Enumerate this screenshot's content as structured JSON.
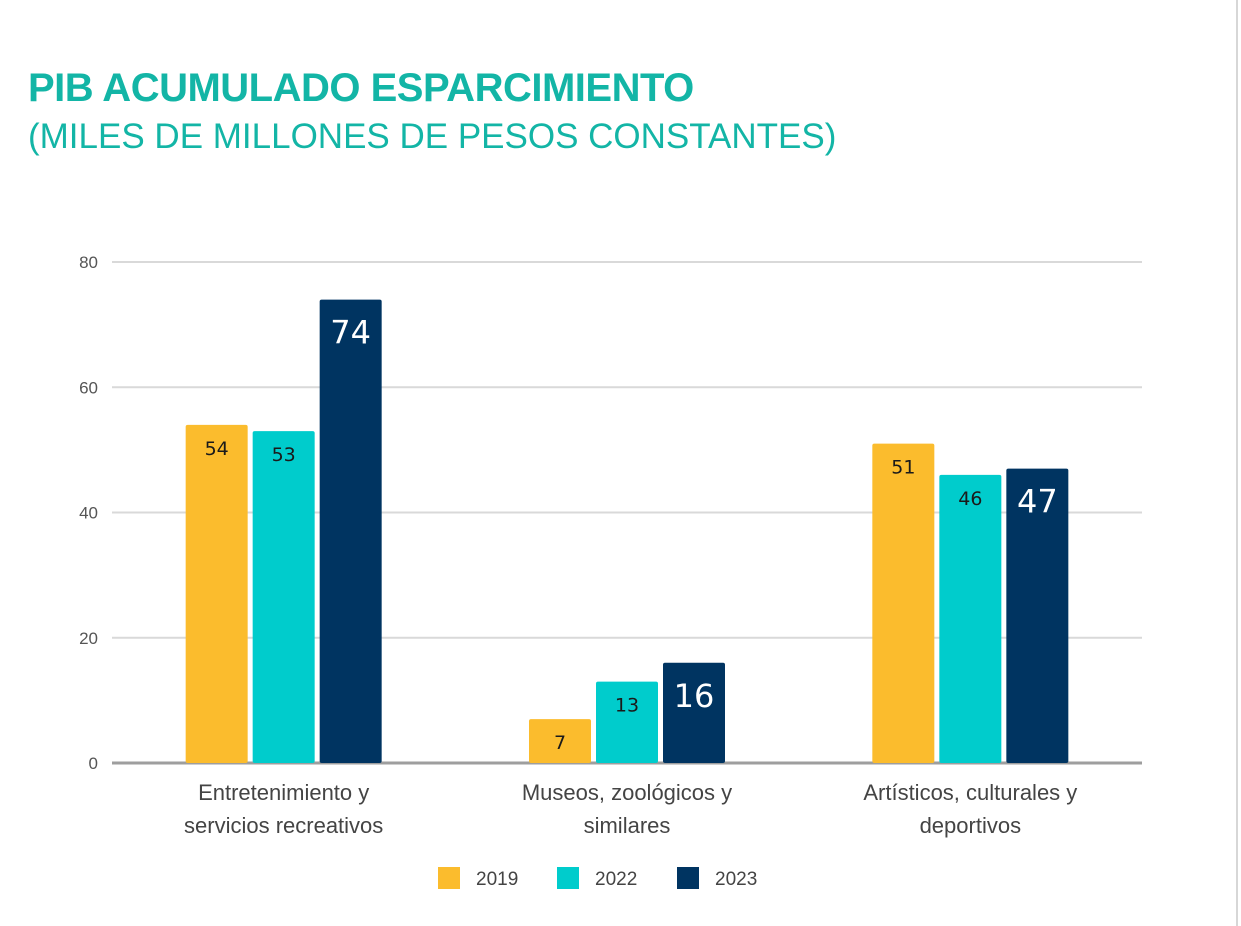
{
  "chart_data": {
    "type": "bar",
    "title": "PIB ACUMULADO ESPARCIMIENTO",
    "subtitle": "(MILES DE MILLONES DE PESOS CONSTANTES)",
    "categories": [
      [
        "Entretenimiento y",
        "servicios recreativos"
      ],
      [
        "Museos, zoológicos y",
        "similares"
      ],
      [
        "Artísticos, culturales y",
        "deportivos"
      ]
    ],
    "series": [
      {
        "name": "2019",
        "color": "#fbbc2d",
        "label_color": "#1a1a1a",
        "values": [
          54,
          7,
          51
        ]
      },
      {
        "name": "2022",
        "color": "#00cccc",
        "label_color": "#1a1a1a",
        "values": [
          53,
          13,
          46
        ]
      },
      {
        "name": "2023",
        "color": "#003461",
        "label_color": "#ffffff",
        "values": [
          74,
          16,
          47
        ]
      }
    ],
    "ylim": [
      0,
      80
    ],
    "yticks": [
      0,
      20,
      40,
      60,
      80
    ],
    "grid": true,
    "legend_position": "bottom"
  }
}
